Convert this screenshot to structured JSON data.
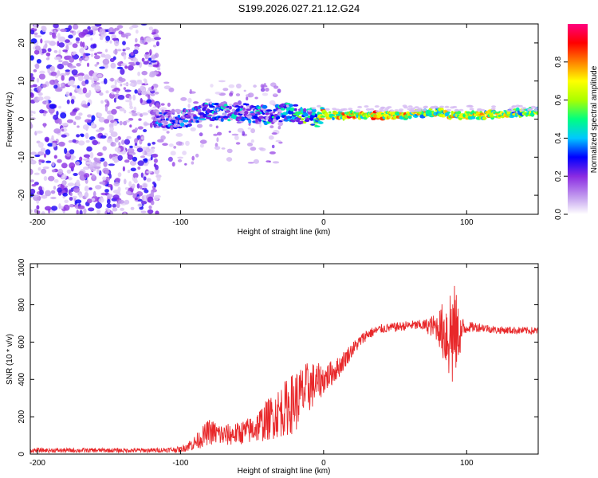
{
  "figure_title": "S199.2026.027.21.12.G24",
  "chart_data": [
    {
      "type": "heatmap",
      "title": "S199.2026.027.21.12.G24",
      "xlabel": "Height of straight line (km)",
      "ylabel": "Frequency (Hz)",
      "xlim": [
        -205,
        150
      ],
      "ylim": [
        -25,
        25
      ],
      "xticks": [
        -200,
        -100,
        0,
        100
      ],
      "xtick_labels": [
        "-200",
        "-100",
        "0",
        "100"
      ],
      "yticks": [
        -20,
        -10,
        0,
        10,
        20
      ],
      "ytick_labels": [
        "-20",
        "-10",
        "0",
        "10",
        "20"
      ],
      "colorbar": {
        "label": "Normalized spectral amplitude",
        "range": [
          0,
          1
        ],
        "ticks": [
          0.0,
          0.2,
          0.4,
          0.6,
          0.8
        ],
        "tick_labels": [
          "0.0",
          "0.2",
          "0.4",
          "0.6",
          "0.8"
        ],
        "colors": [
          "#ffffff",
          "#c9a8f0",
          "#8a2be2",
          "#0000ff",
          "#00c8ff",
          "#00ff80",
          "#aaff00",
          "#ffff00",
          "#ff8000",
          "#ff0000",
          "#ff0080"
        ]
      },
      "signal_ridge": {
        "description_points_x": [
          -115,
          -100,
          -80,
          -60,
          -40,
          -25,
          -15,
          -5,
          0,
          20,
          40,
          60,
          80,
          90,
          110,
          150
        ],
        "frequency_hz": [
          0,
          0,
          2,
          2,
          1,
          2,
          1,
          0,
          1,
          1,
          1,
          1,
          2,
          1,
          1,
          2
        ],
        "peak_amplitude": [
          0.4,
          0.45,
          0.5,
          0.45,
          0.5,
          0.6,
          0.7,
          0.8,
          0.85,
          0.95,
          0.9,
          0.85,
          0.8,
          0.85,
          0.85,
          0.7
        ]
      },
      "noise_region_x": [
        -205,
        -115
      ]
    },
    {
      "type": "line",
      "title": "",
      "xlabel": "Height of straight line (km)",
      "ylabel": "SNR (10 * v/v)",
      "xlim": [
        -205,
        150
      ],
      "ylim": [
        0,
        1020
      ],
      "xticks": [
        -200,
        -100,
        0,
        100
      ],
      "xtick_labels": [
        "-200",
        "-100",
        "0",
        "100"
      ],
      "yticks": [
        0,
        200,
        400,
        600,
        800,
        1000
      ],
      "ytick_labels": [
        "0",
        "200",
        "400",
        "600",
        "800",
        "1000"
      ],
      "series": [
        {
          "name": "SNR",
          "color": "#e8282a",
          "envelope_x": [
            -205,
            -120,
            -100,
            -90,
            -80,
            -70,
            -60,
            -50,
            -40,
            -30,
            -20,
            -10,
            0,
            10,
            20,
            30,
            40,
            50,
            60,
            70,
            80,
            85,
            90,
            95,
            100,
            110,
            120,
            150
          ],
          "envelope_mean": [
            20,
            20,
            25,
            60,
            120,
            100,
            110,
            130,
            180,
            230,
            280,
            360,
            400,
            460,
            560,
            640,
            670,
            680,
            690,
            690,
            680,
            650,
            650,
            640,
            680,
            680,
            665,
            660
          ],
          "envelope_spread": [
            12,
            12,
            15,
            40,
            70,
            60,
            60,
            75,
            110,
            140,
            170,
            140,
            80,
            60,
            40,
            30,
            25,
            25,
            25,
            30,
            80,
            200,
            330,
            120,
            30,
            25,
            20,
            20
          ]
        }
      ]
    }
  ]
}
